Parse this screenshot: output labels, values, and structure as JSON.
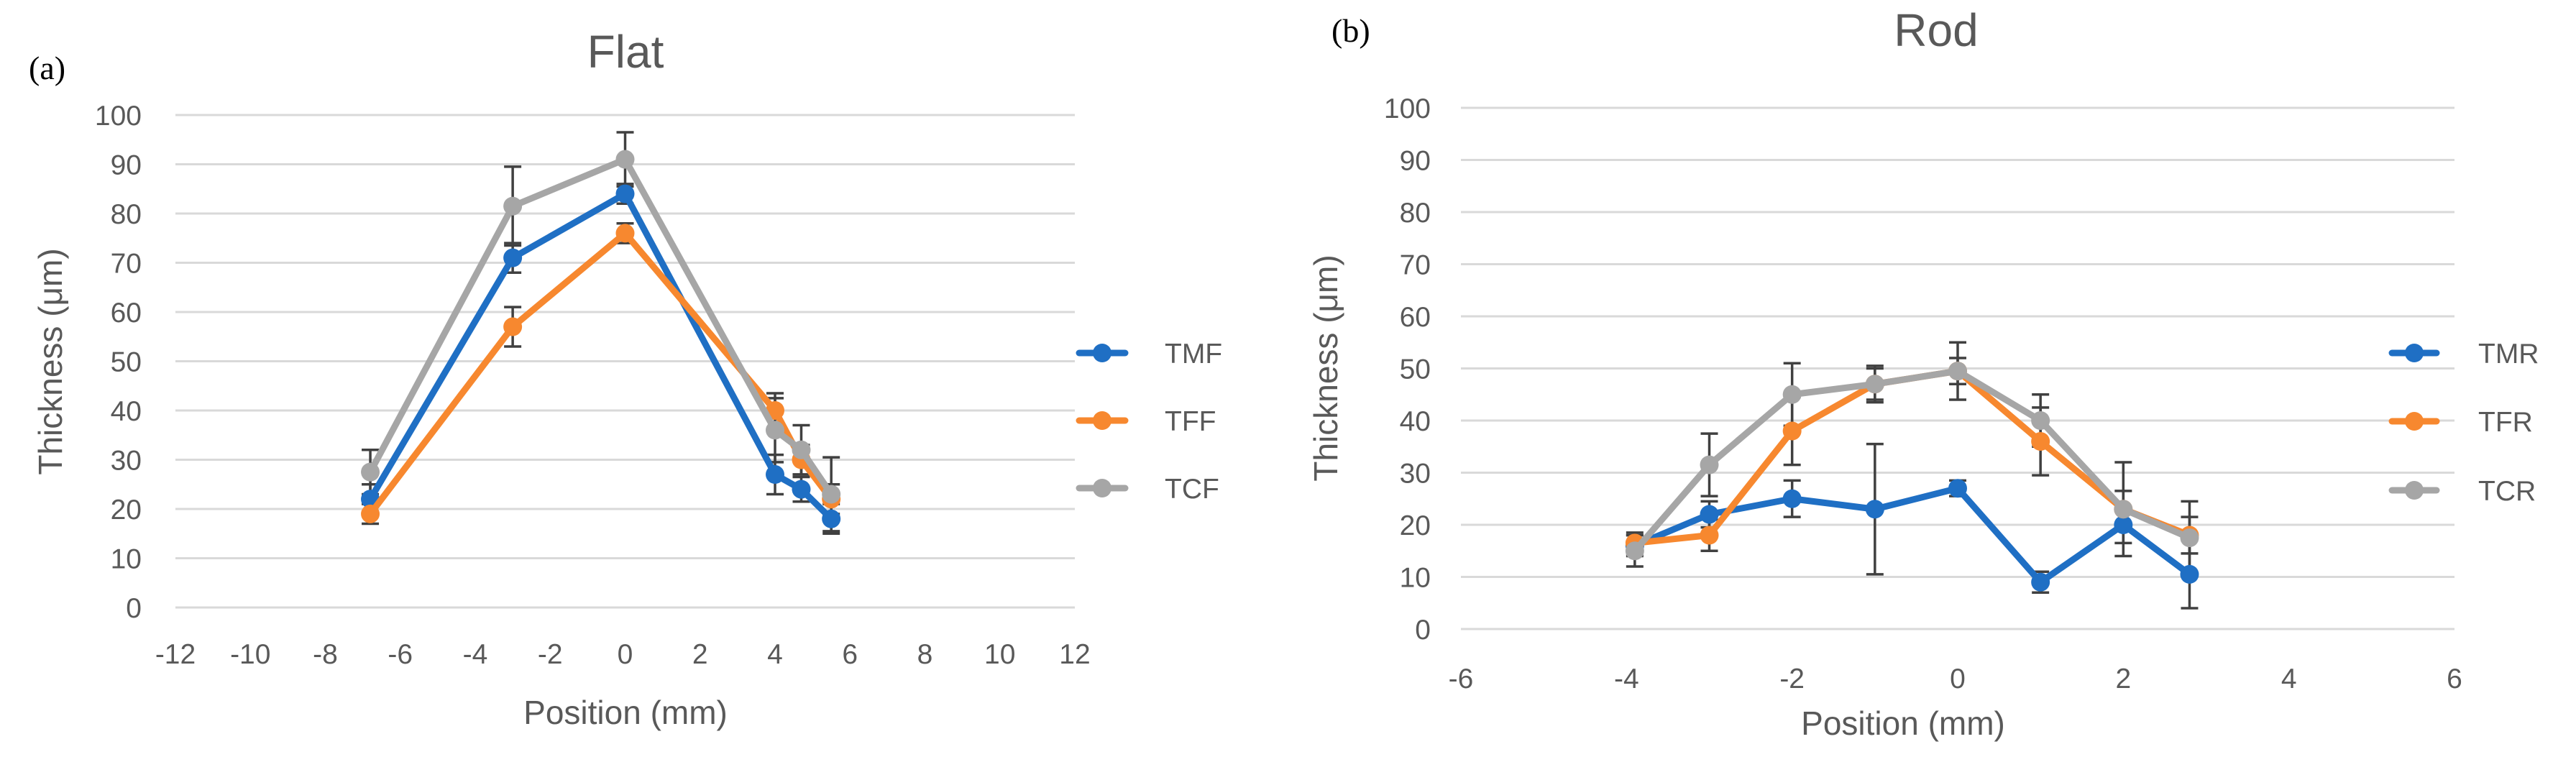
{
  "chart_data": [
    {
      "type": "line",
      "panel_label": "(a)",
      "title": "Flat",
      "xlabel": "Position (mm)",
      "ylabel": "Thickness (μm)",
      "xlim": [
        -12,
        12
      ],
      "xticks": [
        -12,
        -10,
        -8,
        -6,
        -4,
        -2,
        0,
        2,
        4,
        6,
        8,
        10,
        12
      ],
      "ylim": [
        0,
        100
      ],
      "yticks": [
        0,
        10,
        20,
        30,
        40,
        50,
        60,
        70,
        80,
        90,
        100
      ],
      "grid": true,
      "legend": "right",
      "series": [
        {
          "name": "TMF",
          "color": "#1f6fc4",
          "x": [
            -6.8,
            -3,
            0,
            4,
            4.7,
            5.5
          ],
          "y": [
            22,
            71,
            84,
            27,
            24,
            18
          ],
          "err": [
            3,
            3,
            2,
            4,
            2.5,
            3
          ]
        },
        {
          "name": "TFF",
          "color": "#f7882f",
          "x": [
            -6.8,
            -3,
            0,
            4,
            4.7,
            5.5
          ],
          "y": [
            19,
            57,
            76,
            40,
            30,
            22
          ],
          "err": [
            2,
            4,
            2,
            3.5,
            3,
            3
          ]
        },
        {
          "name": "TCF",
          "color": "#a6a6a6",
          "x": [
            -6.8,
            -3,
            0,
            4,
            4.7,
            5.5
          ],
          "y": [
            27.5,
            81.5,
            91,
            36,
            32,
            23
          ],
          "err": [
            4.5,
            8,
            5.5,
            6.5,
            5,
            7.5
          ]
        }
      ]
    },
    {
      "type": "line",
      "panel_label": "(b)",
      "title": "Rod",
      "xlabel": "Position (mm)",
      "ylabel": "Thickness (μm)",
      "xlim": [
        -6,
        6
      ],
      "xticks": [
        -6,
        -4,
        -2,
        0,
        2,
        4,
        6
      ],
      "ylim": [
        0,
        100
      ],
      "yticks": [
        0,
        10,
        20,
        30,
        40,
        50,
        60,
        70,
        80,
        90,
        100
      ],
      "grid": true,
      "legend": "right",
      "series": [
        {
          "name": "TMR",
          "color": "#1f6fc4",
          "x": [
            -3.9,
            -3,
            -2,
            -1,
            0,
            1,
            2,
            2.8
          ],
          "y": [
            16,
            22,
            25,
            23,
            27,
            9,
            20,
            10.5
          ],
          "err": [
            2,
            2.5,
            3.5,
            12.5,
            1.5,
            2,
            3.5,
            6.5
          ]
        },
        {
          "name": "TFR",
          "color": "#f7882f",
          "x": [
            -3.9,
            -3,
            -2,
            -1,
            0,
            1,
            2,
            2.8
          ],
          "y": [
            16.5,
            18,
            38,
            47,
            49.5,
            36,
            23,
            18
          ],
          "err": [
            2,
            3,
            6.5,
            3,
            2.5,
            6.5,
            3.5,
            3.5
          ]
        },
        {
          "name": "TCR",
          "color": "#a6a6a6",
          "x": [
            -3.9,
            -3,
            -2,
            -1,
            0,
            1,
            2,
            2.8
          ],
          "y": [
            15,
            31.5,
            45,
            47,
            49.5,
            40,
            23,
            17.5
          ],
          "err": [
            3,
            6,
            6,
            3.5,
            5.5,
            5,
            9,
            7
          ]
        }
      ]
    }
  ]
}
